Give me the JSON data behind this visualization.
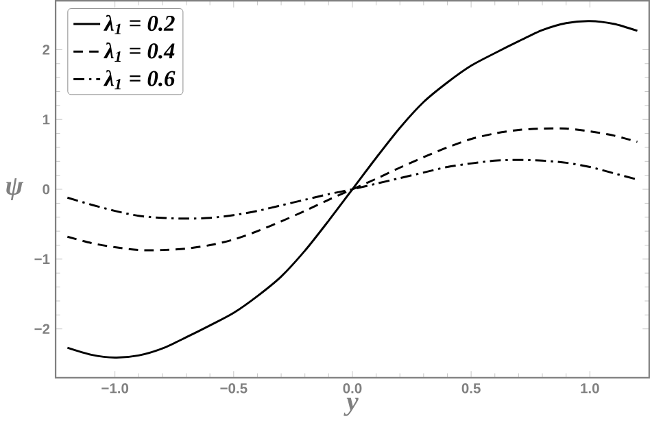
{
  "chart_data": {
    "type": "line",
    "xlabel": "y",
    "ylabel": "ψ",
    "xlim": [
      -1.25,
      1.25
    ],
    "ylim": [
      -2.7,
      2.7
    ],
    "xticks": [
      {
        "value": -1,
        "label": "−1.0"
      },
      {
        "value": -0.5,
        "label": "−0.5"
      },
      {
        "value": 0,
        "label": "0.0"
      },
      {
        "value": 0.5,
        "label": "0.5"
      },
      {
        "value": 1,
        "label": "1.0"
      }
    ],
    "yticks": [
      {
        "value": -2,
        "label": "−2"
      },
      {
        "value": -1,
        "label": "−1"
      },
      0,
      1,
      2
    ],
    "legend": "top left",
    "grid": false,
    "marker": "none",
    "x": [
      -1.2,
      -1.1,
      -1.0,
      -0.9,
      -0.8,
      -0.7,
      -0.6,
      -0.5,
      -0.4,
      -0.3,
      -0.2,
      -0.1,
      0,
      0.1,
      0.2,
      0.3,
      0.4,
      0.5,
      0.6,
      0.7,
      0.8,
      0.9,
      1.0,
      1.1,
      1.2
    ],
    "series": [
      {
        "name": "λ$_{1}$   = 0.2",
        "color": "#000000",
        "line_style": "solid",
        "values": [
          -2.27,
          -2.37,
          -2.41,
          -2.38,
          -2.28,
          -2.12,
          -1.95,
          -1.77,
          -1.53,
          -1.25,
          -0.88,
          -0.45,
          0,
          0.45,
          0.88,
          1.25,
          1.53,
          1.77,
          1.95,
          2.12,
          2.28,
          2.38,
          2.41,
          2.37,
          2.27
        ]
      },
      {
        "name": "λ$_{1}$   = 0.4",
        "color": "#000000",
        "line_style": "dashed",
        "values": [
          -0.68,
          -0.77,
          -0.83,
          -0.87,
          -0.87,
          -0.85,
          -0.8,
          -0.72,
          -0.6,
          -0.46,
          -0.31,
          -0.15,
          0,
          0.15,
          0.31,
          0.46,
          0.6,
          0.72,
          0.8,
          0.85,
          0.87,
          0.87,
          0.83,
          0.77,
          0.68
        ]
      },
      {
        "name": "λ$_{1}$   = 0.6",
        "color": "#000000",
        "line_style": "dashdot",
        "values": [
          -0.12,
          -0.22,
          -0.31,
          -0.38,
          -0.41,
          -0.42,
          -0.41,
          -0.37,
          -0.31,
          -0.23,
          -0.15,
          -0.07,
          0,
          0.08,
          0.16,
          0.24,
          0.32,
          0.37,
          0.41,
          0.42,
          0.41,
          0.38,
          0.32,
          0.23,
          0.14
        ]
      }
    ]
  }
}
